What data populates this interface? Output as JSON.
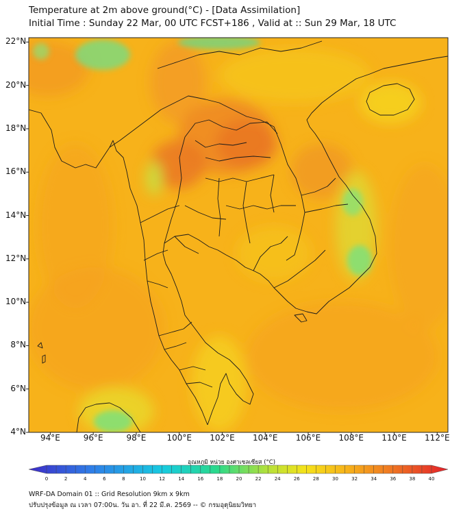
{
  "header": {
    "title_line1": "Temperature at 2m above ground(°C) - [Data Assimilation]",
    "title_line2": "Initial Time : Sunday 22 Mar, 00 UTC FCST+186 , Valid at :: Sun 29 Mar, 18 UTC"
  },
  "map": {
    "lat_labels": [
      "22°N",
      "20°N",
      "18°N",
      "16°N",
      "14°N",
      "12°N",
      "10°N",
      "8°N",
      "6°N",
      "4°N"
    ],
    "lon_labels": [
      "94°E",
      "96°E",
      "98°E",
      "100°E",
      "102°E",
      "104°E",
      "106°E",
      "108°E",
      "110°E",
      "112°E"
    ],
    "lon_range": [
      93,
      112.5
    ],
    "lat_range": [
      4,
      22.2
    ],
    "field_colors": {
      "base": "#f7b21a",
      "warm": "#f39a22",
      "hot": "#ea7a24",
      "cool": "#f5d020",
      "mild": "#c9df40",
      "cold": "#6fdf8a"
    }
  },
  "colorbar": {
    "title": "อุณหภูมิ หน่วย องศาเซลเซียส (°C)",
    "ticks": [
      "0",
      "2",
      "4",
      "6",
      "8",
      "10",
      "12",
      "14",
      "16",
      "18",
      "20",
      "22",
      "24",
      "26",
      "28",
      "30",
      "32",
      "34",
      "36",
      "38",
      "40"
    ],
    "min": 0,
    "max": 40
  },
  "footer": {
    "line1": "WRF-DA Domain 01 :: Grid Resolution 9km x 9km",
    "line2": "ปรับปรุงข้อมูล ณ เวลา 07:00น. วัน อา. ที่ 22 มี.ค. 2569 -- © กรมอุตุนิยมวิทยา"
  }
}
